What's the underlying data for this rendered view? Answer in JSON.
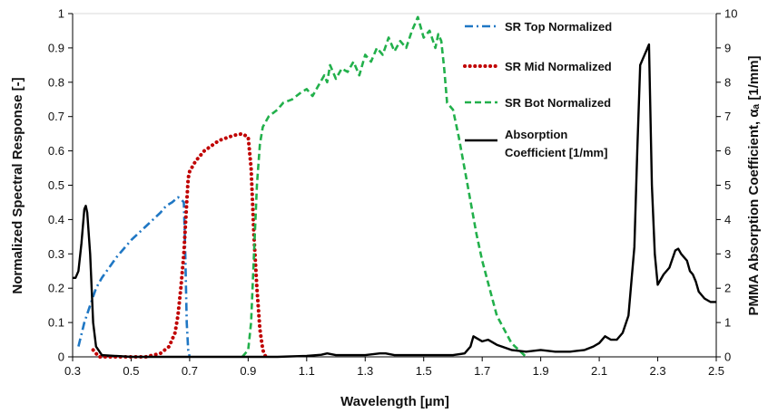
{
  "chart_data": {
    "type": "line",
    "xlabel": "Wavelength [µm]",
    "ylabel_left": "Normalized Spectral Response [-]",
    "ylabel_right": "PMMA Absorption Coefficient, αₐ [1/mm]",
    "xlim": [
      0.3,
      2.5
    ],
    "ylim_left": [
      0,
      1
    ],
    "ylim_right": [
      0,
      10
    ],
    "grid": false,
    "legend_position": "top-right",
    "x_ticks": [
      "0.3",
      "0.5",
      "0.7",
      "0.9",
      "1.1",
      "1.3",
      "1.5",
      "1.7",
      "1.9",
      "2.1",
      "2.3",
      "2.5"
    ],
    "y_left_ticks": [
      "0",
      "0.1",
      "0.2",
      "0.3",
      "0.4",
      "0.5",
      "0.6",
      "0.7",
      "0.8",
      "0.9",
      "1"
    ],
    "y_right_ticks": [
      "0",
      "1",
      "2",
      "3",
      "4",
      "5",
      "6",
      "7",
      "8",
      "9",
      "10"
    ],
    "series": [
      {
        "name": "SR Top Normalized",
        "axis": "left",
        "color": "#1f77c4",
        "dash": "dashdot",
        "x": [
          0.32,
          0.34,
          0.36,
          0.38,
          0.4,
          0.45,
          0.5,
          0.55,
          0.6,
          0.62,
          0.64,
          0.66,
          0.67,
          0.68,
          0.685,
          0.69,
          0.695,
          0.7
        ],
        "y": [
          0.03,
          0.1,
          0.15,
          0.2,
          0.23,
          0.29,
          0.34,
          0.38,
          0.42,
          0.44,
          0.45,
          0.465,
          0.46,
          0.45,
          0.3,
          0.1,
          0.02,
          0.0
        ]
      },
      {
        "name": "SR Mid Normalized",
        "axis": "left",
        "color": "#c00000",
        "dash": "dotted",
        "x": [
          0.37,
          0.39,
          0.45,
          0.5,
          0.55,
          0.6,
          0.63,
          0.65,
          0.66,
          0.67,
          0.68,
          0.69,
          0.695,
          0.7,
          0.72,
          0.75,
          0.8,
          0.85,
          0.88,
          0.9,
          0.91,
          0.92,
          0.93,
          0.94,
          0.95,
          0.96
        ],
        "y": [
          0.02,
          0.0,
          0.0,
          0.0,
          0.0,
          0.01,
          0.03,
          0.07,
          0.12,
          0.2,
          0.3,
          0.45,
          0.52,
          0.54,
          0.57,
          0.6,
          0.63,
          0.645,
          0.65,
          0.64,
          0.55,
          0.35,
          0.2,
          0.08,
          0.02,
          0.0
        ]
      },
      {
        "name": "SR Bot Normalized",
        "axis": "left",
        "color": "#22b04b",
        "dash": "dashed",
        "x": [
          0.88,
          0.9,
          0.91,
          0.92,
          0.93,
          0.94,
          0.95,
          0.97,
          1.0,
          1.02,
          1.05,
          1.08,
          1.1,
          1.12,
          1.14,
          1.16,
          1.17,
          1.18,
          1.2,
          1.22,
          1.24,
          1.26,
          1.28,
          1.3,
          1.32,
          1.34,
          1.36,
          1.38,
          1.4,
          1.42,
          1.44,
          1.46,
          1.47,
          1.48,
          1.5,
          1.52,
          1.54,
          1.55,
          1.56,
          1.57,
          1.58,
          1.6,
          1.62,
          1.65,
          1.68,
          1.7,
          1.75,
          1.8,
          1.85
        ],
        "y": [
          0.0,
          0.02,
          0.1,
          0.3,
          0.5,
          0.62,
          0.67,
          0.7,
          0.72,
          0.74,
          0.75,
          0.77,
          0.78,
          0.76,
          0.79,
          0.82,
          0.8,
          0.85,
          0.81,
          0.84,
          0.83,
          0.86,
          0.82,
          0.88,
          0.86,
          0.9,
          0.88,
          0.93,
          0.89,
          0.92,
          0.9,
          0.95,
          0.97,
          0.99,
          0.93,
          0.95,
          0.9,
          0.94,
          0.92,
          0.84,
          0.74,
          0.72,
          0.64,
          0.5,
          0.36,
          0.28,
          0.12,
          0.04,
          0.0
        ]
      },
      {
        "name": "Absorption Coefficient [1/mm]",
        "axis": "right",
        "color": "#000000",
        "dash": "solid",
        "x": [
          0.3,
          0.31,
          0.32,
          0.33,
          0.34,
          0.345,
          0.35,
          0.36,
          0.37,
          0.38,
          0.4,
          0.5,
          0.7,
          0.9,
          1.0,
          1.1,
          1.15,
          1.17,
          1.2,
          1.3,
          1.35,
          1.37,
          1.4,
          1.5,
          1.6,
          1.64,
          1.66,
          1.67,
          1.68,
          1.7,
          1.72,
          1.75,
          1.8,
          1.85,
          1.9,
          1.95,
          2.0,
          2.05,
          2.08,
          2.1,
          2.12,
          2.14,
          2.16,
          2.18,
          2.2,
          2.22,
          2.23,
          2.24,
          2.25,
          2.26,
          2.27,
          2.28,
          2.29,
          2.3,
          2.32,
          2.34,
          2.36,
          2.37,
          2.38,
          2.4,
          2.41,
          2.42,
          2.43,
          2.44,
          2.46,
          2.48,
          2.5
        ],
        "y": [
          2.3,
          2.3,
          2.5,
          3.3,
          4.3,
          4.4,
          4.2,
          3.0,
          1.0,
          0.3,
          0.05,
          0.0,
          0.0,
          0.0,
          0.0,
          0.03,
          0.06,
          0.1,
          0.05,
          0.05,
          0.1,
          0.1,
          0.05,
          0.05,
          0.05,
          0.1,
          0.3,
          0.6,
          0.55,
          0.45,
          0.5,
          0.35,
          0.2,
          0.15,
          0.2,
          0.15,
          0.15,
          0.2,
          0.3,
          0.4,
          0.6,
          0.5,
          0.5,
          0.7,
          1.2,
          3.2,
          6.0,
          8.5,
          8.7,
          8.9,
          9.1,
          5.0,
          3.0,
          2.1,
          2.4,
          2.6,
          3.1,
          3.15,
          3.0,
          2.8,
          2.5,
          2.4,
          2.2,
          1.9,
          1.7,
          1.6,
          1.6
        ]
      }
    ]
  }
}
